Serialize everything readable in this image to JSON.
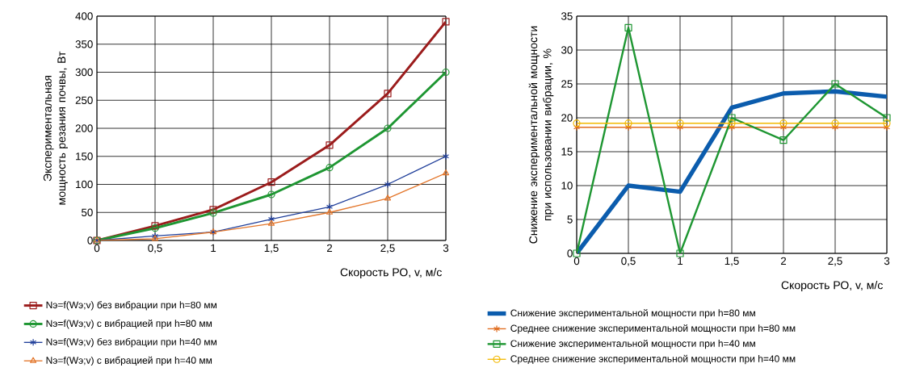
{
  "chart_data": [
    {
      "type": "line",
      "ylabel": "Экспериментальная мощность резания почвы, Вт",
      "xlabel": "Скорость РО, v, м/с",
      "x": [
        0,
        0.5,
        1,
        1.5,
        2,
        2.5,
        3
      ],
      "xlim": [
        0,
        3
      ],
      "xticks": [
        0,
        {
          "value": 0.5,
          "label": "0,5"
        },
        1,
        {
          "value": 1.5,
          "label": "1,5"
        },
        2,
        {
          "value": 2.5,
          "label": "2,5"
        },
        3
      ],
      "ylim": [
        0,
        400
      ],
      "yticks": [
        0,
        50,
        100,
        150,
        200,
        250,
        300,
        350,
        400
      ],
      "grid": true,
      "legend": "bottom",
      "series": [
        {
          "name": "Nэ=f(Wэ;v) без вибрации при h=80 мм",
          "color": "#9b1c1c",
          "marker": "square",
          "values": [
            0,
            26,
            55,
            104,
            170,
            262,
            390
          ]
        },
        {
          "name": "Nэ=f(Wэ;v) с вибрацией при h=80 мм",
          "color": "#1e9632",
          "marker": "circle",
          "values": [
            0,
            22,
            49,
            82,
            130,
            200,
            300
          ]
        },
        {
          "name": "Nэ=f(Wэ;v) без вибрации при h=40 мм",
          "color": "#203f9a",
          "marker": "cross",
          "values": [
            0,
            8,
            15,
            38,
            60,
            100,
            150
          ]
        },
        {
          "name": "Nэ=f(Wэ;v) с вибрацией при h=40 мм",
          "color": "#e3762b",
          "marker": "triangle",
          "values": [
            0,
            3,
            15,
            30,
            50,
            75,
            120
          ]
        }
      ]
    },
    {
      "type": "line",
      "ylabel": "Снижение экспериментальной мощности при использовании вибрации, %",
      "xlabel": "Скорость РО, v, м/с",
      "x": [
        0,
        0.5,
        1,
        1.5,
        2,
        2.5,
        3
      ],
      "xlim": [
        0,
        3
      ],
      "xticks": [
        0,
        {
          "value": 0.5,
          "label": "0,5"
        },
        1,
        {
          "value": 1.5,
          "label": "1,5"
        },
        2,
        {
          "value": 2.5,
          "label": "2,5"
        },
        3
      ],
      "ylim": [
        0,
        35
      ],
      "yticks": [
        0,
        5,
        10,
        15,
        20,
        25,
        30,
        35
      ],
      "grid": true,
      "legend": "bottom",
      "series": [
        {
          "name": "Снижение экспериментальной мощности при h=80 мм",
          "color": "#0b5cad",
          "marker": "none",
          "values": [
            0,
            10,
            9.1,
            21.5,
            23.6,
            23.9,
            23.1
          ]
        },
        {
          "name": "Среднее снижение экспериментальной мощности при h=80 мм",
          "color": "#e06c1e",
          "marker": "cross",
          "values": [
            18.6,
            18.6,
            18.6,
            18.6,
            18.6,
            18.6,
            18.6
          ]
        },
        {
          "name": "Снижение экспериментальной мощности при h=40 мм",
          "color": "#1e9632",
          "marker": "square",
          "values": [
            0,
            33.3,
            0,
            20,
            16.7,
            25,
            20
          ]
        },
        {
          "name": "Среднее снижение экспериментальной мощности при h=40 мм",
          "color": "#f2b800",
          "marker": "circle",
          "values": [
            19.2,
            19.2,
            19.2,
            19.2,
            19.2,
            19.2,
            19.2
          ]
        }
      ]
    }
  ]
}
